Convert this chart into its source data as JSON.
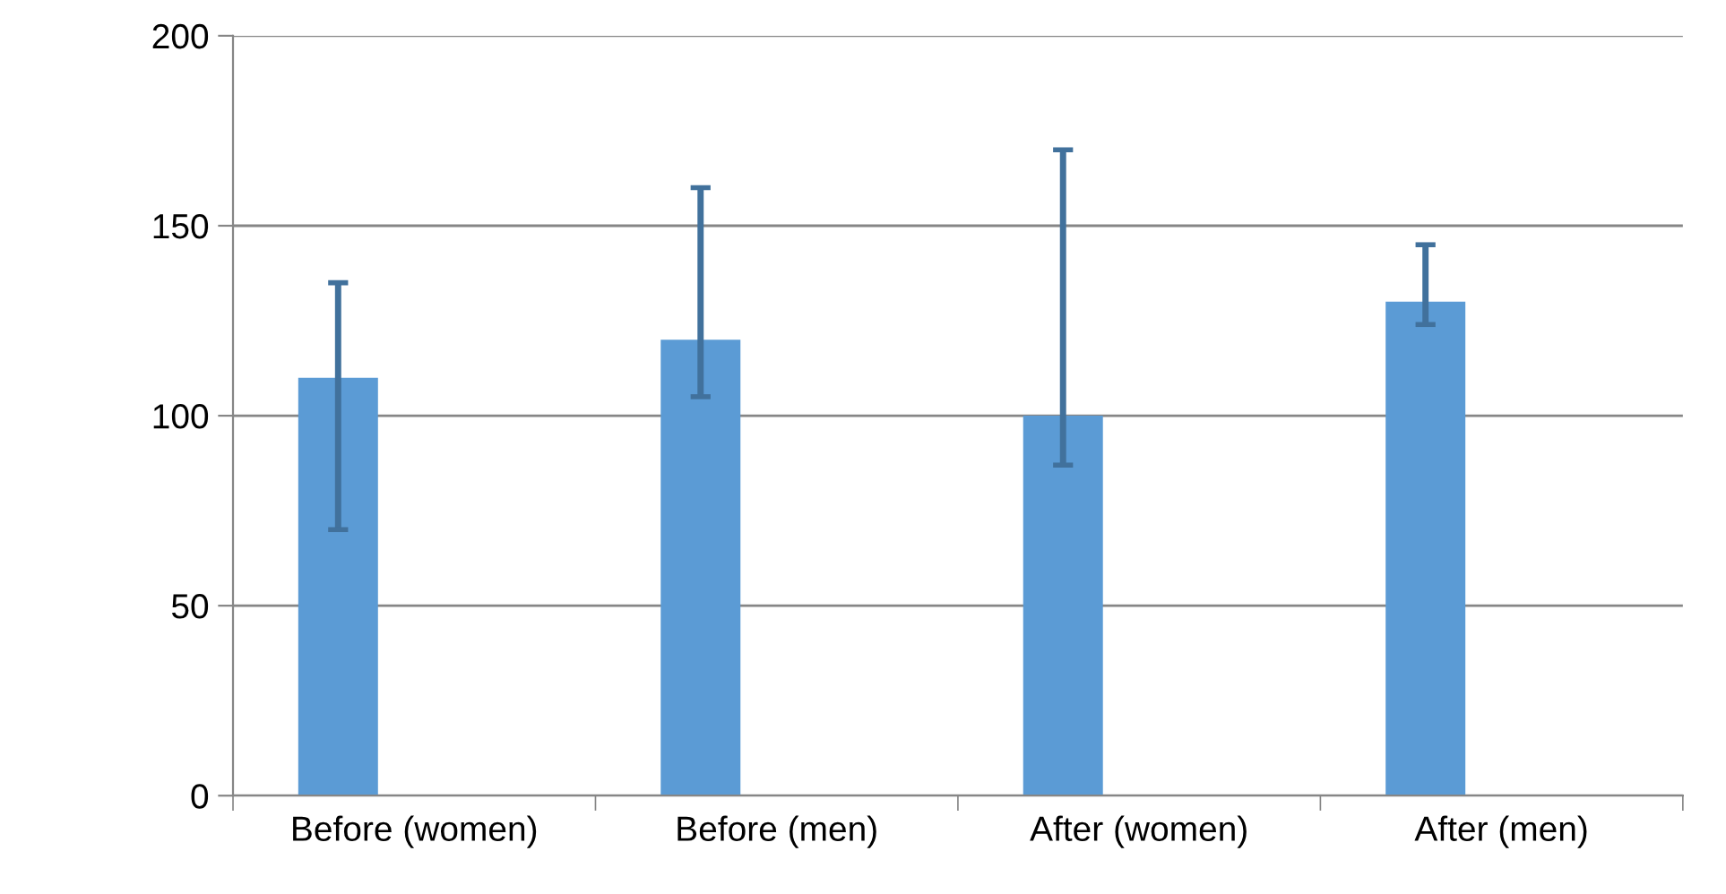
{
  "chart_data": {
    "type": "bar",
    "categories": [
      "Before (women)",
      "Before (men)",
      "After (women)",
      "After (men)"
    ],
    "values": [
      110,
      120,
      100,
      130
    ],
    "errors": [
      [
        70,
        135
      ],
      [
        105,
        160
      ],
      [
        87,
        170
      ],
      [
        124,
        145
      ]
    ],
    "color": "#5b9bd5",
    "ylim": [
      0,
      200
    ],
    "yticks": [
      0,
      50,
      100,
      150,
      200
    ],
    "grid": "y",
    "legend": false
  }
}
